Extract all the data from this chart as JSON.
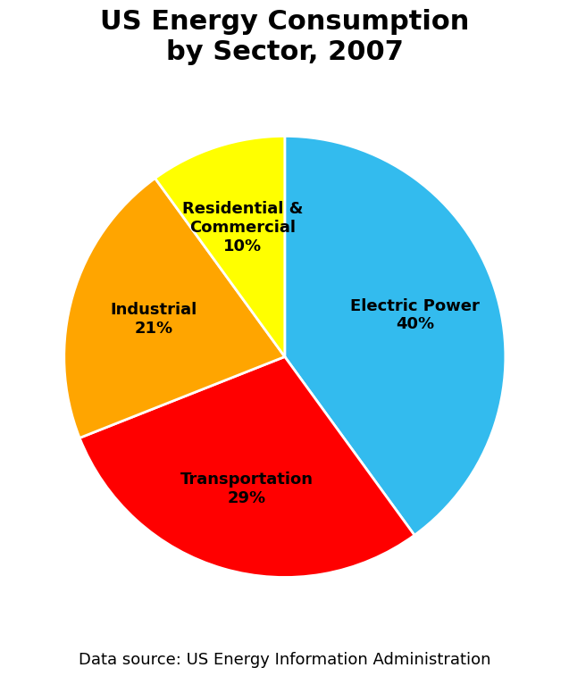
{
  "title": "US Energy Consumption\nby Sector, 2007",
  "title_fontsize": 22,
  "title_fontweight": "bold",
  "slices": [
    {
      "label": "Electric Power\n40%",
      "value": 40,
      "color": "#33BBEE"
    },
    {
      "label": "Transportation\n29%",
      "value": 29,
      "color": "#FF0000"
    },
    {
      "label": "Industrial\n21%",
      "value": 21,
      "color": "#FFA500"
    },
    {
      "label": "Residential &\nCommercial\n10%",
      "value": 10,
      "color": "#FFFF00"
    }
  ],
  "label_fontsize": 13,
  "label_fontweight": "bold",
  "startangle": 90,
  "counterclock": false,
  "footnote": "Data source: US Energy Information Administration",
  "footnote_fontsize": 13,
  "background_color": "#FFFFFF"
}
